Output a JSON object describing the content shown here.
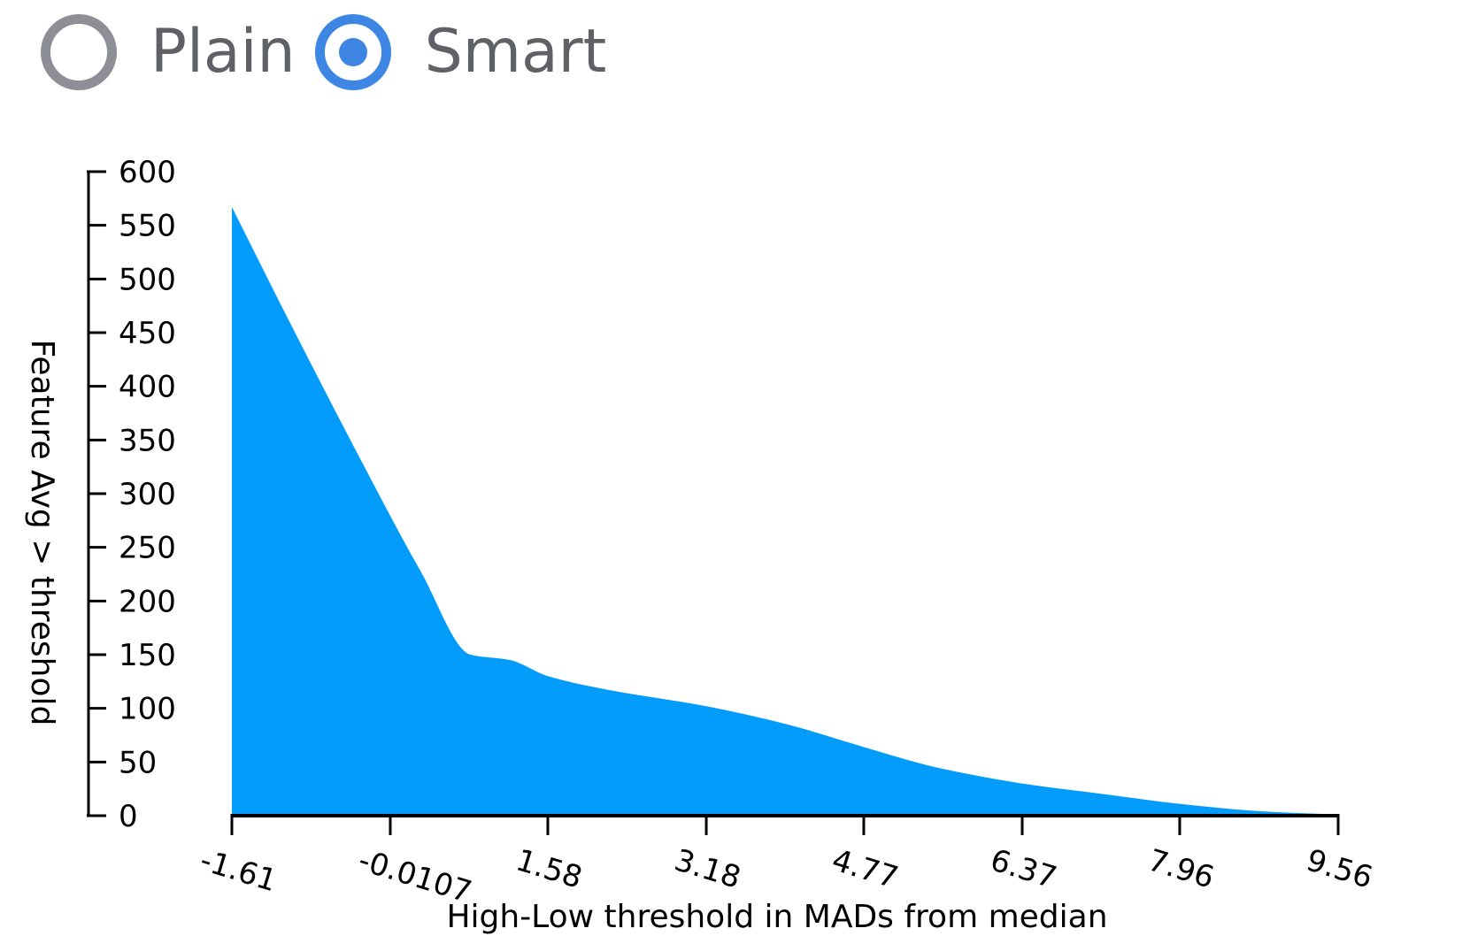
{
  "toggle": {
    "options": [
      {
        "label": "Plain",
        "checked": false
      },
      {
        "label": "Smart",
        "checked": true
      }
    ],
    "colors": {
      "checked": "#3d86e4",
      "unchecked": "#8e8e96",
      "label": "#5f6166"
    }
  },
  "chart_data": {
    "type": "area",
    "title": "",
    "xlabel": "High-Low threshold in MADs from median",
    "ylabel": "Feature Avg > threshold",
    "xlim": [
      -1.61,
      9.56
    ],
    "ylim": [
      0,
      600
    ],
    "x_ticks": [
      -1.61,
      -0.0107,
      1.58,
      3.18,
      4.77,
      6.37,
      7.96,
      9.56
    ],
    "x_tick_labels": [
      "-1.61",
      "-0.0107",
      "1.58",
      "3.18",
      "4.77",
      "6.37",
      "7.96",
      "9.56"
    ],
    "y_ticks": [
      0,
      50,
      100,
      150,
      200,
      250,
      300,
      350,
      400,
      450,
      500,
      550,
      600
    ],
    "y_tick_labels": [
      "0",
      "50",
      "100",
      "150",
      "200",
      "250",
      "300",
      "350",
      "400",
      "450",
      "500",
      "550",
      "600"
    ],
    "fill_color": "#039cfb",
    "grid": false,
    "series": [
      {
        "x": [
          -1.61,
          -1.0,
          -0.3,
          0.3,
          0.8,
          1.2,
          1.58,
          2.2,
          3.18,
          4.0,
          4.77,
          5.5,
          6.37,
          7.2,
          7.96,
          8.8,
          9.56
        ],
        "values": [
          567,
          455,
          330,
          227,
          150,
          145,
          130,
          117,
          102,
          85,
          64,
          45,
          30,
          20,
          11,
          4,
          1
        ]
      }
    ]
  }
}
